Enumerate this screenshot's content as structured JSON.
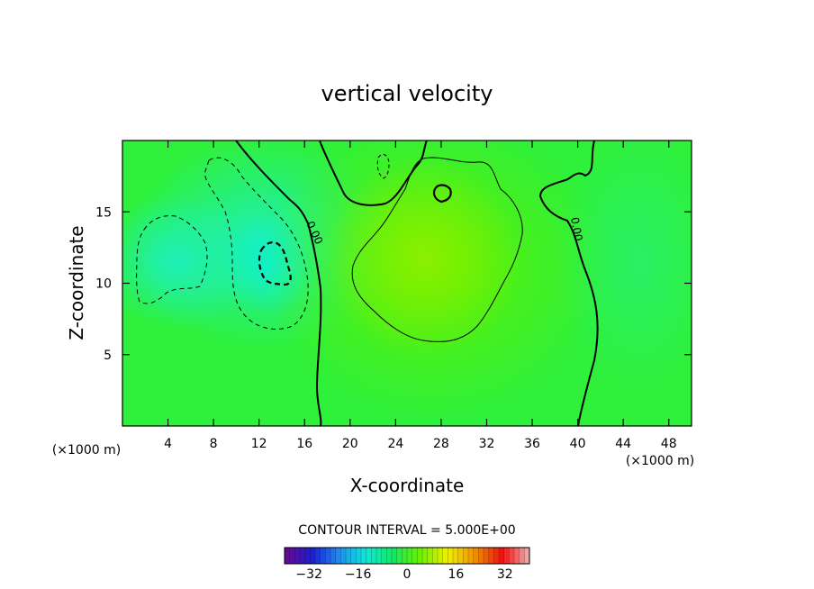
{
  "chart_data": {
    "type": "heatmap",
    "title": "vertical velocity",
    "xlabel": "X-coordinate",
    "ylabel": "Z-coordinate",
    "x_unit_left": "(×1000 m)",
    "x_unit_right": "(×1000 m)",
    "xlim": [
      0,
      50
    ],
    "ylim": [
      0,
      20
    ],
    "x_ticks": [
      4,
      8,
      12,
      16,
      20,
      24,
      28,
      32,
      36,
      40,
      44,
      48
    ],
    "y_ticks": [
      5,
      10,
      15
    ],
    "contour_interval_label": "CONTOUR INTERVAL = 5.000E+00",
    "contour_interval": 5,
    "contour_labels": [
      {
        "text": "0.00",
        "x": 16.5,
        "z": 13.2
      },
      {
        "text": "0.00",
        "x": 40.0,
        "z": 13.2
      }
    ],
    "extrema": [
      {
        "kind": "min",
        "x": 13.5,
        "z": 11.5,
        "value": -10
      },
      {
        "kind": "max",
        "x": 28.0,
        "z": 16.0,
        "value": 5
      }
    ],
    "colorbar": {
      "range": [
        -40,
        40
      ],
      "ticks": [
        -32,
        -16,
        0,
        16,
        32
      ],
      "colors": [
        "#6a0a8c",
        "#1d1bd0",
        "#1e8cf0",
        "#10e8d8",
        "#13e860",
        "#6ef000",
        "#f0f000",
        "#f09000",
        "#f01010",
        "#f0b0b0"
      ]
    }
  }
}
